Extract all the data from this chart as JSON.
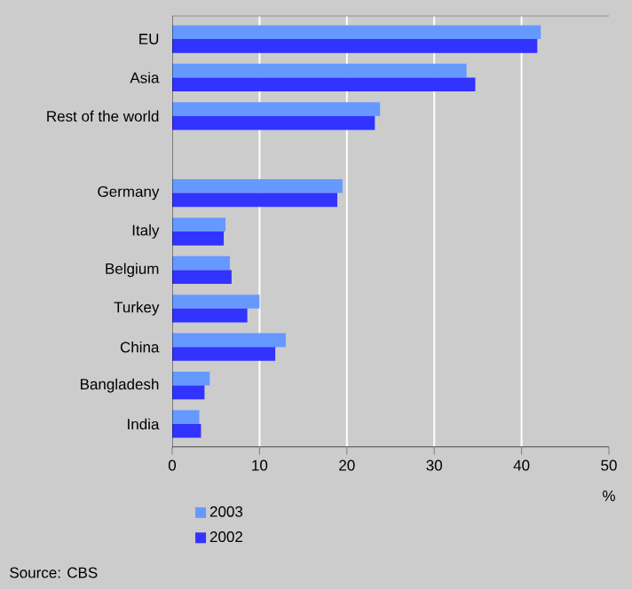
{
  "chart_data": {
    "type": "bar",
    "orientation": "horizontal",
    "categories": [
      "EU",
      "Asia",
      "Rest of the world",
      null,
      "Germany",
      "Italy",
      "Belgium",
      "Turkey",
      "China",
      "Bangladesh",
      "India"
    ],
    "series": [
      {
        "name": "2003",
        "color": "#6699ff",
        "values": [
          42.2,
          33.7,
          23.8,
          null,
          19.5,
          6.1,
          6.6,
          10.0,
          13.0,
          4.3,
          3.1
        ]
      },
      {
        "name": "2002",
        "color": "#3333ff",
        "values": [
          41.8,
          34.7,
          23.2,
          null,
          18.9,
          5.9,
          6.8,
          8.6,
          11.8,
          3.7,
          3.3
        ]
      }
    ],
    "xlim": [
      0,
      50
    ],
    "xticks": [
      0,
      10,
      20,
      30,
      40,
      50
    ],
    "xlabel": "%",
    "grid": "x",
    "legend": "bottom left",
    "annotations": [
      "Source: CBS"
    ]
  }
}
